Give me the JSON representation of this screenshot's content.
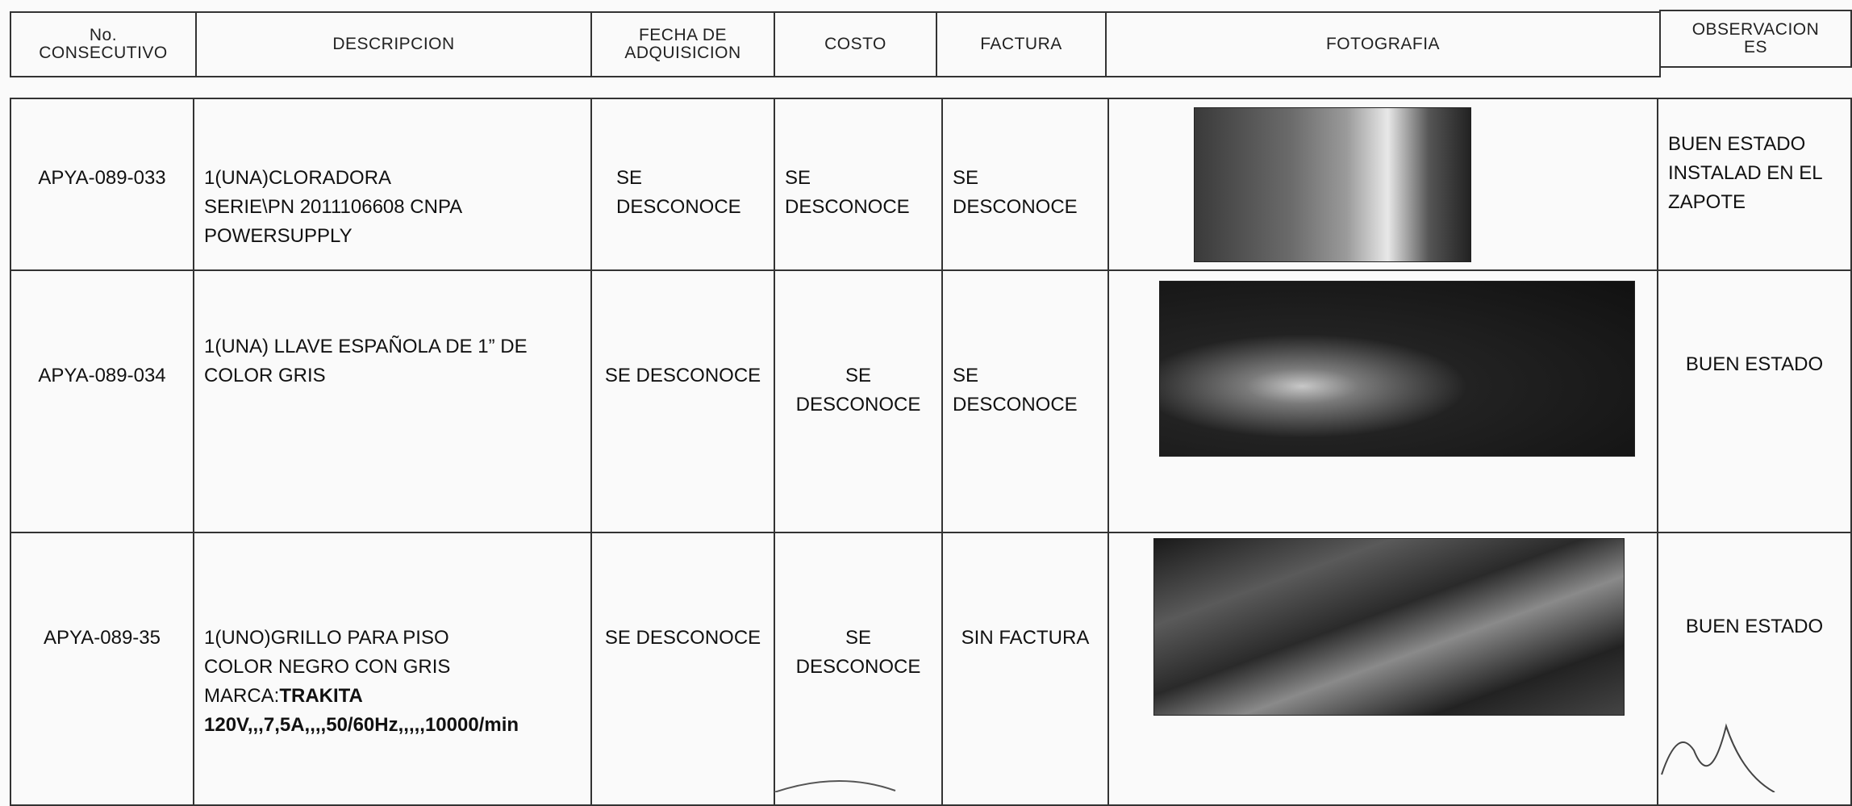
{
  "header": {
    "columns": [
      [
        "No.",
        "CONSECUTIVO"
      ],
      [
        "DESCRIPCION"
      ],
      [
        "FECHA DE",
        "ADQUISICION"
      ],
      [
        "COSTO"
      ],
      [
        "FACTURA"
      ],
      [
        "FOTOGRAFIA"
      ],
      [
        "OBSERVACION",
        "ES"
      ]
    ]
  },
  "table": {
    "rows": [
      {
        "id": "APYA-089-033",
        "description": [
          "1(UNA)CLORADORA",
          "SERIE\\PN 2011106608 CNPA",
          "POWERSUPPLY"
        ],
        "fecha": [
          "SE",
          "DESCONOCE"
        ],
        "costo": [
          "SE",
          "DESCONOCE"
        ],
        "factura": [
          "SE",
          "DESCONOCE"
        ],
        "observaciones": [
          "BUEN ESTADO",
          "INSTALAD EN EL",
          "ZAPOTE"
        ]
      },
      {
        "id": "APYA-089-034",
        "description": [
          "1(UNA) LLAVE ESPAÑOLA  DE 1” DE",
          "COLOR GRIS"
        ],
        "fecha": [
          "SE DESCONOCE"
        ],
        "costo": [
          "SE",
          "DESCONOCE"
        ],
        "factura": [
          "SE",
          "DESCONOCE"
        ],
        "observaciones": [
          "BUEN ESTADO"
        ]
      },
      {
        "id": "APYA-089-35",
        "description": [
          "1(UNO)GRILLO  PARA PISO",
          "COLOR NEGRO CON GRIS"
        ],
        "brand_label": "MARCA:",
        "brand": "TRAKITA",
        "specs": "120V,,,7,5A,,,,50/60Hz,,,,,10000/min",
        "fecha": [
          "SE DESCONOCE"
        ],
        "costo": [
          "SE",
          "DESCONOCE"
        ],
        "factura": [
          "SIN FACTURA"
        ],
        "observaciones": [
          "BUEN ESTADO"
        ]
      }
    ]
  }
}
